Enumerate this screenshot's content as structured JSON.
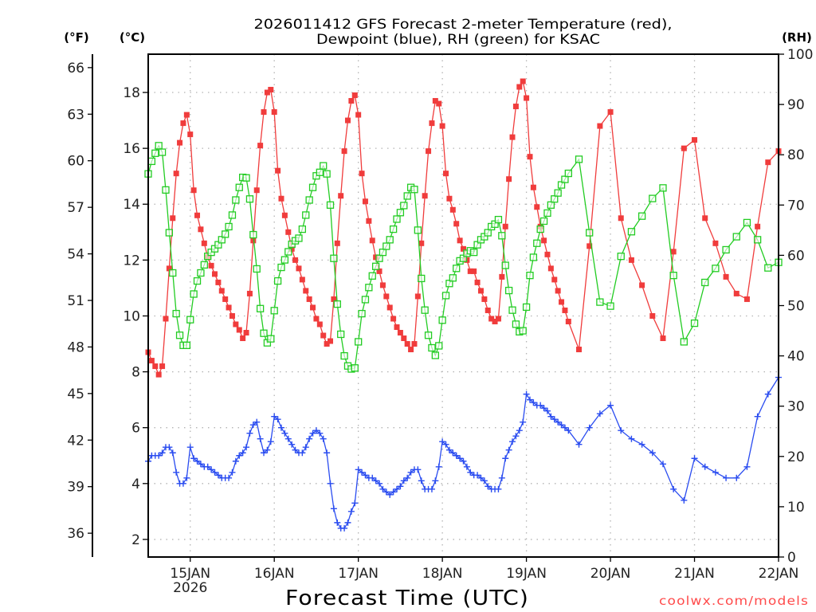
{
  "chart_data": {
    "type": "line",
    "title": [
      "2026011412 GFS Forecast 2-meter Temperature (red),",
      "Dewpoint (blue), RH (green) for KSAC"
    ],
    "xlabel": "Forecast Time (UTC)",
    "x_unit": "forecast hour after 2026011412",
    "xlim": [
      0,
      180
    ],
    "x_ticks": [
      {
        "hour": 12,
        "label": "15JAN",
        "sublabel": "2026"
      },
      {
        "hour": 36,
        "label": "16JAN",
        "sublabel": ""
      },
      {
        "hour": 60,
        "label": "17JAN",
        "sublabel": ""
      },
      {
        "hour": 84,
        "label": "18JAN",
        "sublabel": ""
      },
      {
        "hour": 108,
        "label": "19JAN",
        "sublabel": ""
      },
      {
        "hour": 132,
        "label": "20JAN",
        "sublabel": ""
      },
      {
        "hour": 156,
        "label": "21JAN",
        "sublabel": ""
      },
      {
        "hour": 180,
        "label": "22JAN",
        "sublabel": ""
      }
    ],
    "y_axes": {
      "fahrenheit": {
        "label": "(°F)",
        "ticks": [
          36,
          39,
          42,
          45,
          48,
          51,
          54,
          57,
          60,
          63,
          66
        ]
      },
      "celsius": {
        "label": "(°C)",
        "ticks": [
          2,
          4,
          6,
          8,
          10,
          12,
          14,
          16,
          18
        ],
        "range": [
          1.37,
          19.37
        ]
      },
      "rh": {
        "label": "(RH)",
        "ticks": [
          0,
          10,
          20,
          30,
          40,
          50,
          60,
          70,
          80,
          90,
          100
        ],
        "range": [
          0,
          100
        ]
      }
    },
    "grid": true,
    "x": [
      0,
      1,
      2,
      3,
      4,
      5,
      6,
      7,
      8,
      9,
      10,
      11,
      12,
      13,
      14,
      15,
      16,
      17,
      18,
      19,
      20,
      21,
      22,
      23,
      24,
      25,
      26,
      27,
      28,
      29,
      30,
      31,
      32,
      33,
      34,
      35,
      36,
      37,
      38,
      39,
      40,
      41,
      42,
      43,
      44,
      45,
      46,
      47,
      48,
      49,
      50,
      51,
      52,
      53,
      54,
      55,
      56,
      57,
      58,
      59,
      60,
      61,
      62,
      63,
      64,
      65,
      66,
      67,
      68,
      69,
      70,
      71,
      72,
      73,
      74,
      75,
      76,
      77,
      78,
      79,
      80,
      81,
      82,
      83,
      84,
      85,
      86,
      87,
      88,
      89,
      90,
      91,
      92,
      93,
      94,
      95,
      96,
      97,
      98,
      99,
      100,
      101,
      102,
      103,
      104,
      105,
      106,
      107,
      108,
      109,
      110,
      111,
      112,
      113,
      114,
      115,
      116,
      117,
      118,
      119,
      120,
      123,
      126,
      129,
      132,
      135,
      138,
      141,
      144,
      147,
      150,
      153,
      156,
      159,
      162,
      165,
      168,
      171,
      174,
      177,
      180
    ],
    "series": [
      {
        "name": "Temperature",
        "unit": "°C",
        "axis": "celsius",
        "color": "#f03c3c",
        "marker": "filled-square",
        "values": [
          8.7,
          8.4,
          8.2,
          7.9,
          8.2,
          9.9,
          11.7,
          13.5,
          15.1,
          16.2,
          16.9,
          17.2,
          16.5,
          14.5,
          13.6,
          13.1,
          12.6,
          12.1,
          11.8,
          11.5,
          11.2,
          10.9,
          10.6,
          10.3,
          10.0,
          9.7,
          9.5,
          9.2,
          9.4,
          10.8,
          12.7,
          14.5,
          16.1,
          17.3,
          18.0,
          18.1,
          17.3,
          15.2,
          14.2,
          13.6,
          13.0,
          12.4,
          12.0,
          11.7,
          11.3,
          10.9,
          10.6,
          10.3,
          9.9,
          9.7,
          9.3,
          9.0,
          9.1,
          10.6,
          12.6,
          14.3,
          15.9,
          17.0,
          17.7,
          17.9,
          17.2,
          15.1,
          14.1,
          13.4,
          12.7,
          12.1,
          11.6,
          11.1,
          10.7,
          10.3,
          9.9,
          9.6,
          9.4,
          9.2,
          9.0,
          8.8,
          9.0,
          10.7,
          12.6,
          14.3,
          15.9,
          16.9,
          17.7,
          17.6,
          16.8,
          15.1,
          14.2,
          13.8,
          13.3,
          12.7,
          12.4,
          12.0,
          11.6,
          11.6,
          11.2,
          10.9,
          10.6,
          10.2,
          9.9,
          9.8,
          9.9,
          11.4,
          13.2,
          14.9,
          16.4,
          17.5,
          18.2,
          18.4,
          17.8,
          15.7,
          14.6,
          13.9,
          13.2,
          12.7,
          12.2,
          11.7,
          11.3,
          10.9,
          10.5,
          10.2,
          9.8,
          8.8,
          12.5,
          16.8,
          17.3,
          13.5,
          12.0,
          11.1,
          10.0,
          9.2,
          12.3,
          16.0,
          16.3,
          13.5,
          12.6,
          11.4,
          10.8,
          10.6,
          13.2,
          15.5,
          15.9
        ]
      },
      {
        "name": "RH",
        "unit": "%",
        "axis": "rh",
        "color": "#22cc22",
        "marker": "open-square",
        "values": [
          76.2,
          78.7,
          80.3,
          81.8,
          80.5,
          73.0,
          64.5,
          56.5,
          48.4,
          44.1,
          42.1,
          42.1,
          47.2,
          52.3,
          54.9,
          56.5,
          58.1,
          59.8,
          60.6,
          61.3,
          62.1,
          63.1,
          64.2,
          65.7,
          68.0,
          71.0,
          73.5,
          75.5,
          75.4,
          71.2,
          64.1,
          57.3,
          49.4,
          44.5,
          42.6,
          43.4,
          49.0,
          54.9,
          57.6,
          59.1,
          60.7,
          62.2,
          62.9,
          63.4,
          65.2,
          68.0,
          71.0,
          73.5,
          75.8,
          76.5,
          77.8,
          76.2,
          70.0,
          59.4,
          50.3,
          44.3,
          40.0,
          38.0,
          37.4,
          37.6,
          42.8,
          48.4,
          51.2,
          53.6,
          55.9,
          57.8,
          59.4,
          60.6,
          61.8,
          63.1,
          65.2,
          67.2,
          68.5,
          69.9,
          71.8,
          73.5,
          73.1,
          65.0,
          55.4,
          49.1,
          44.1,
          41.6,
          40.1,
          42.0,
          47.1,
          52.0,
          54.4,
          55.5,
          57.4,
          58.9,
          59.4,
          60.4,
          60.9,
          60.6,
          62.1,
          63.1,
          63.7,
          64.5,
          65.7,
          66.2,
          67.1,
          63.9,
          58.0,
          53.0,
          49.1,
          46.3,
          44.8,
          45.0,
          49.7,
          56.0,
          59.6,
          62.4,
          65.2,
          66.8,
          68.4,
          70.0,
          71.2,
          72.4,
          74.0,
          75.1,
          76.3,
          79.1,
          64.5,
          50.7,
          49.9,
          59.8,
          64.7,
          67.8,
          71.3,
          73.4,
          56.0,
          42.8,
          46.5,
          54.6,
          57.4,
          61.1,
          63.7,
          66.5,
          63.1,
          57.5,
          58.6
        ]
      },
      {
        "name": "Dewpoint",
        "unit": "°C",
        "axis": "celsius",
        "color": "#2a4cf0",
        "marker": "plus",
        "values": [
          4.8,
          5.0,
          5.0,
          5.0,
          5.1,
          5.3,
          5.3,
          5.1,
          4.4,
          4.0,
          4.0,
          4.2,
          5.3,
          4.9,
          4.8,
          4.7,
          4.6,
          4.6,
          4.5,
          4.4,
          4.3,
          4.2,
          4.2,
          4.2,
          4.4,
          4.8,
          5.0,
          5.1,
          5.3,
          5.8,
          6.1,
          6.2,
          5.6,
          5.1,
          5.2,
          5.5,
          6.4,
          6.3,
          6.0,
          5.8,
          5.6,
          5.4,
          5.2,
          5.1,
          5.1,
          5.3,
          5.6,
          5.8,
          5.9,
          5.8,
          5.6,
          5.1,
          4.0,
          3.1,
          2.6,
          2.4,
          2.4,
          2.6,
          3.0,
          3.3,
          4.5,
          4.4,
          4.3,
          4.2,
          4.2,
          4.1,
          4.0,
          3.8,
          3.7,
          3.6,
          3.7,
          3.8,
          3.9,
          4.1,
          4.2,
          4.4,
          4.5,
          4.5,
          4.1,
          3.8,
          3.8,
          3.8,
          4.1,
          4.6,
          5.5,
          5.4,
          5.2,
          5.1,
          5.0,
          4.9,
          4.8,
          4.6,
          4.4,
          4.3,
          4.3,
          4.2,
          4.1,
          3.9,
          3.8,
          3.8,
          3.8,
          4.2,
          4.9,
          5.2,
          5.5,
          5.7,
          5.9,
          6.2,
          7.2,
          7.0,
          6.9,
          6.8,
          6.8,
          6.7,
          6.6,
          6.4,
          6.3,
          6.2,
          6.1,
          6.0,
          5.9,
          5.4,
          6.0,
          6.5,
          6.8,
          5.9,
          5.6,
          5.4,
          5.1,
          4.7,
          3.8,
          3.4,
          4.9,
          4.6,
          4.4,
          4.2,
          4.2,
          4.6,
          6.4,
          7.2,
          7.8
        ]
      }
    ],
    "watermark": "coolwx.com/models"
  }
}
